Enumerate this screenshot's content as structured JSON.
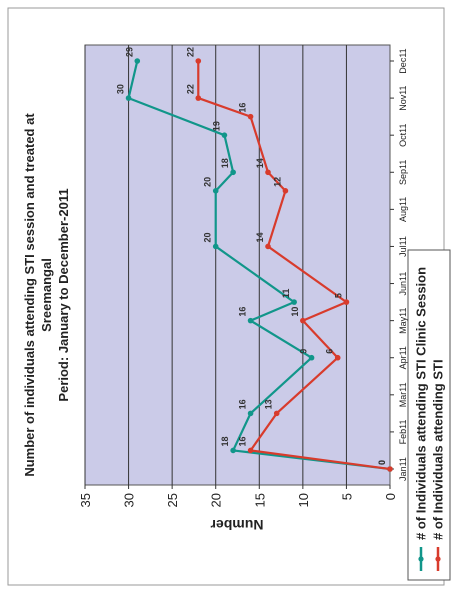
{
  "chart_data": {
    "type": "line",
    "title": "Number of individuals attending STI session and treated at Sreemangal",
    "subtitle": "Period: January to December-2011",
    "title_lines": [
      "Number of individuals attending STI session and treated at",
      "Sreemangal",
      "Period: January to December-2011"
    ],
    "ylabel": "Number",
    "ylim": [
      0,
      35
    ],
    "yticks": [
      "0",
      "5",
      "10",
      "15",
      "20",
      "25",
      "30",
      "35"
    ],
    "categories": [
      "Jan11",
      "Feb11",
      "Mar11",
      "Apr11",
      "May11",
      "Jun11",
      "Jul11",
      "Aug11",
      "Sep11",
      "Oct11",
      "Nov11",
      "Dec11"
    ],
    "x": [
      0,
      0.5,
      1.5,
      2.5,
      3,
      4,
      4.5,
      6,
      6.5,
      7.5,
      8.5,
      9.5,
      10,
      11
    ],
    "grid": true,
    "legend_position": "bottom",
    "series": [
      {
        "name": "# of Individuals attending STI Clinic Session",
        "color": "#11968a",
        "values": [
          0,
          18,
          16,
          9,
          16,
          11,
          20,
          20,
          18,
          19,
          30,
          29
        ],
        "x": [
          0,
          0.5,
          1.5,
          3,
          4,
          4.5,
          6,
          7.5,
          8,
          9,
          10,
          11
        ],
        "labels": [
          "0",
          "18",
          "16",
          "9",
          "16",
          "11",
          "20",
          "20",
          "18",
          "19",
          "30",
          "29"
        ]
      },
      {
        "name": "# of Individuals attending STI",
        "color": "#d83b2c",
        "values": [
          0,
          16,
          13,
          6,
          10,
          5,
          14,
          12,
          14,
          16,
          22,
          22
        ],
        "x": [
          0,
          0.5,
          1.5,
          3,
          4,
          4.5,
          6,
          7.5,
          8,
          9.5,
          10,
          11
        ],
        "labels": [
          "0",
          "16",
          "13",
          "6",
          "10",
          "5",
          "14",
          "12",
          "14",
          "16",
          "22",
          "22"
        ]
      }
    ]
  }
}
